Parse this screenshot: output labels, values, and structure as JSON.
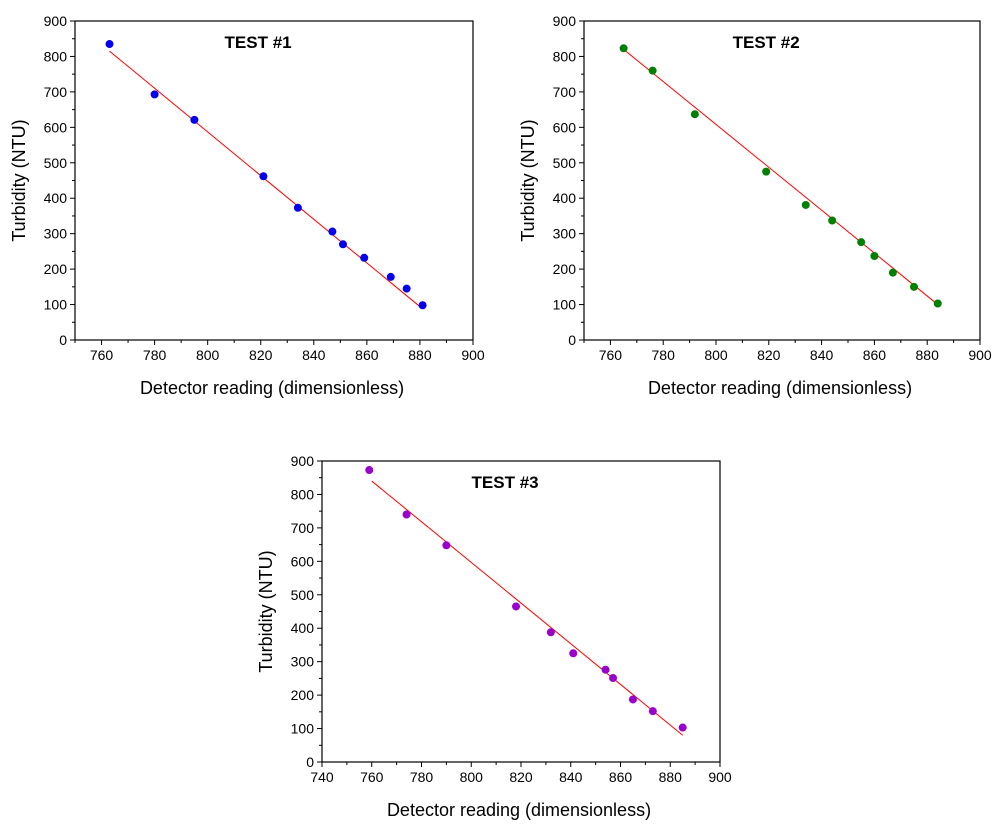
{
  "chart_data": [
    {
      "type": "scatter",
      "title": "TEST #1",
      "xlabel": "Detector reading (dimensionless)",
      "ylabel": "Turbidity (NTU)",
      "xlim": [
        750,
        900
      ],
      "ylim": [
        0,
        900
      ],
      "xticks": [
        760,
        780,
        800,
        820,
        840,
        860,
        880,
        900
      ],
      "yticks": [
        0,
        100,
        200,
        300,
        400,
        500,
        600,
        700,
        800,
        900
      ],
      "grid": false,
      "legend": "none",
      "point_color": "#0000ee",
      "fit_color": "#ff0000",
      "points": {
        "x": [
          763,
          780,
          795,
          821,
          834,
          847,
          851,
          859,
          869,
          875,
          881
        ],
        "y": [
          835,
          693,
          621,
          462,
          373,
          306,
          270,
          232,
          178,
          145,
          98
        ]
      },
      "fit_line": {
        "x": [
          763,
          881
        ],
        "y": [
          815,
          88
        ]
      }
    },
    {
      "type": "scatter",
      "title": "TEST #2",
      "xlabel": "Detector reading (dimensionless)",
      "ylabel": "Turbidity (NTU)",
      "xlim": [
        750,
        900
      ],
      "ylim": [
        0,
        900
      ],
      "xticks": [
        760,
        780,
        800,
        820,
        840,
        860,
        880,
        900
      ],
      "yticks": [
        0,
        100,
        200,
        300,
        400,
        500,
        600,
        700,
        800,
        900
      ],
      "grid": false,
      "legend": "none",
      "point_color": "#008000",
      "fit_color": "#ff0000",
      "points": {
        "x": [
          765,
          776,
          792,
          819,
          834,
          844,
          855,
          860,
          867,
          875,
          884
        ],
        "y": [
          823,
          760,
          637,
          475,
          381,
          337,
          276,
          237,
          190,
          150,
          103
        ]
      },
      "fit_line": {
        "x": [
          765,
          884
        ],
        "y": [
          820,
          100
        ]
      }
    },
    {
      "type": "scatter",
      "title": "TEST #3",
      "xlabel": "Detector reading (dimensionless)",
      "ylabel": "Turbidity (NTU)",
      "xlim": [
        740,
        900
      ],
      "ylim": [
        0,
        900
      ],
      "xticks": [
        740,
        760,
        780,
        800,
        820,
        840,
        860,
        880,
        900
      ],
      "yticks": [
        0,
        100,
        200,
        300,
        400,
        500,
        600,
        700,
        800,
        900
      ],
      "grid": false,
      "legend": "none",
      "point_color": "#9900cc",
      "fit_color": "#ff0000",
      "points": {
        "x": [
          759,
          774,
          790,
          818,
          832,
          841,
          854,
          857,
          865,
          873,
          885
        ],
        "y": [
          873,
          740,
          648,
          465,
          388,
          325,
          276,
          251,
          187,
          152,
          103
        ]
      },
      "fit_line": {
        "x": [
          760,
          885
        ],
        "y": [
          840,
          80
        ]
      }
    }
  ]
}
